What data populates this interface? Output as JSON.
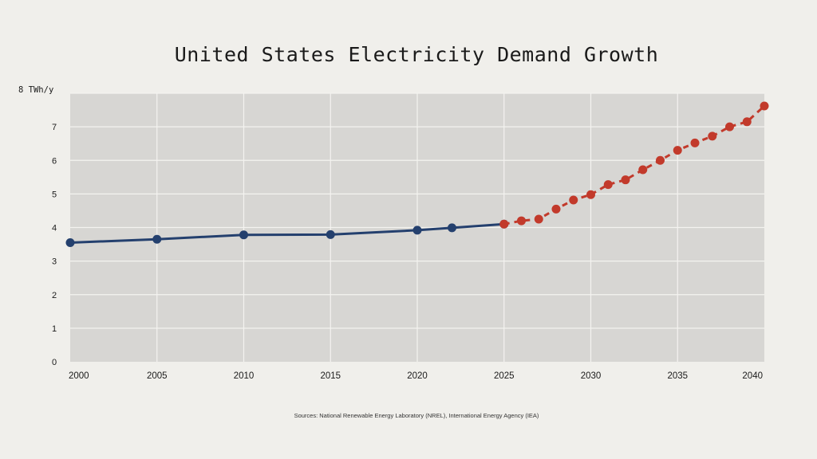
{
  "chart_data": {
    "type": "line",
    "title": "United States Electricity Demand Growth",
    "ylabel": "TWh/y",
    "source": "Sources: National Renewable Energy Laboratory (NREL), International Energy Agency (IEA)",
    "xlim": [
      2000,
      2040
    ],
    "ylim": [
      0,
      8
    ],
    "x_ticks": [
      "2000",
      "2005",
      "2010",
      "2015",
      "2020",
      "2025",
      "2030",
      "2035",
      "2040"
    ],
    "y_ticks": [
      "0",
      "1",
      "2",
      "3",
      "4",
      "5",
      "6",
      "7",
      "8"
    ],
    "grid": true,
    "series": [
      {
        "style": "solid",
        "color": "#24406e",
        "x": [
          2000,
          2005,
          2010,
          2015,
          2020,
          2022,
          2025
        ],
        "values": [
          3.55,
          3.65,
          3.78,
          3.79,
          3.92,
          3.99,
          4.1
        ]
      },
      {
        "style": "dashed",
        "color": "#c23a2b",
        "x": [
          2025,
          2026,
          2027,
          2028,
          2029,
          2030,
          2031,
          2032,
          2033,
          2034,
          2035,
          2036,
          2037,
          2038,
          2039,
          2040
        ],
        "values": [
          4.1,
          4.2,
          4.25,
          4.55,
          4.82,
          4.98,
          5.28,
          5.42,
          5.72,
          6.0,
          6.3,
          6.52,
          6.72,
          7.0,
          7.15,
          7.62
        ]
      }
    ]
  }
}
